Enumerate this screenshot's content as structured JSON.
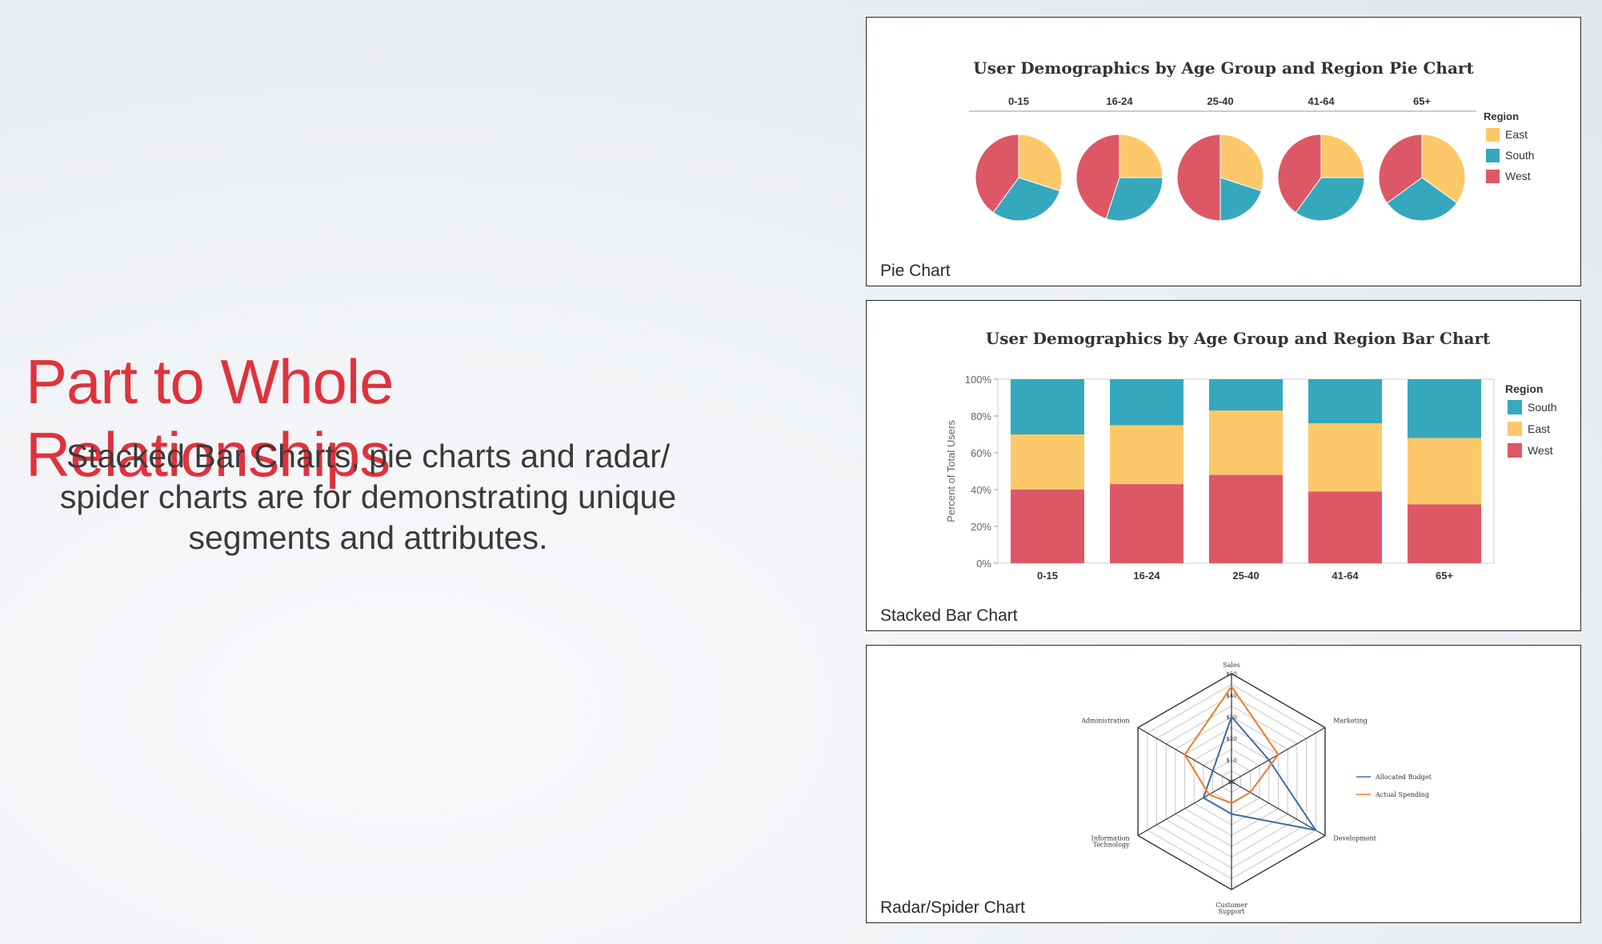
{
  "slide": {
    "title": "Part to Whole Relationships",
    "subtitle": "Stacked Bar Charts, pie charts and radar/ spider charts are for demonstrating unique segments and attributes."
  },
  "colors": {
    "east": "#fdc86a",
    "south": "#35a8bd",
    "west": "#dd5866",
    "budget": "#3a6ea5",
    "spending": "#f07a2b",
    "title_red": "#e0323c"
  },
  "captions": {
    "pie": "Pie Chart",
    "bar": "Stacked Bar Chart",
    "radar": "Radar/Spider Chart"
  },
  "chart_data": [
    {
      "type": "pie",
      "title": "User Demographics by Age Group and Region Pie Chart",
      "legend_title": "Region",
      "legend_position": "right",
      "categories": [
        "0-15",
        "16-24",
        "25-40",
        "41-64",
        "65+"
      ],
      "series": [
        {
          "name": "East",
          "values": [
            30,
            25,
            30,
            25,
            35
          ]
        },
        {
          "name": "South",
          "values": [
            30,
            30,
            20,
            35,
            30
          ]
        },
        {
          "name": "West",
          "values": [
            40,
            45,
            50,
            40,
            35
          ]
        }
      ]
    },
    {
      "type": "bar",
      "stacked": true,
      "title": "User Demographics by Age Group and Region Bar Chart",
      "ylabel": "Percent of Total Users",
      "xlabel": "",
      "ylim": [
        0,
        100
      ],
      "yticks": [
        "0%",
        "20%",
        "40%",
        "60%",
        "80%",
        "100%"
      ],
      "legend_title": "Region",
      "legend_position": "right",
      "categories": [
        "0-15",
        "16-24",
        "25-40",
        "41-64",
        "65+"
      ],
      "series": [
        {
          "name": "West",
          "values": [
            40,
            43,
            48,
            39,
            32
          ]
        },
        {
          "name": "East",
          "values": [
            30,
            32,
            35,
            37,
            36
          ]
        },
        {
          "name": "South",
          "values": [
            30,
            25,
            17,
            24,
            32
          ]
        }
      ],
      "legend_order": [
        "South",
        "East",
        "West"
      ]
    },
    {
      "type": "radar",
      "axes": [
        "Sales",
        "Marketing",
        "Development",
        "Customer Support",
        "Information Technology",
        "Administration"
      ],
      "rlim": [
        0,
        50
      ],
      "rticks": [
        "$0",
        "$10",
        "$20",
        "$30",
        "$40",
        "$50"
      ],
      "series": [
        {
          "name": "Allocated Budget",
          "values": [
            30,
            20,
            45,
            15,
            15,
            10
          ]
        },
        {
          "name": "Actual Spending",
          "values": [
            44,
            25,
            10,
            10,
            12,
            25
          ]
        }
      ]
    }
  ]
}
